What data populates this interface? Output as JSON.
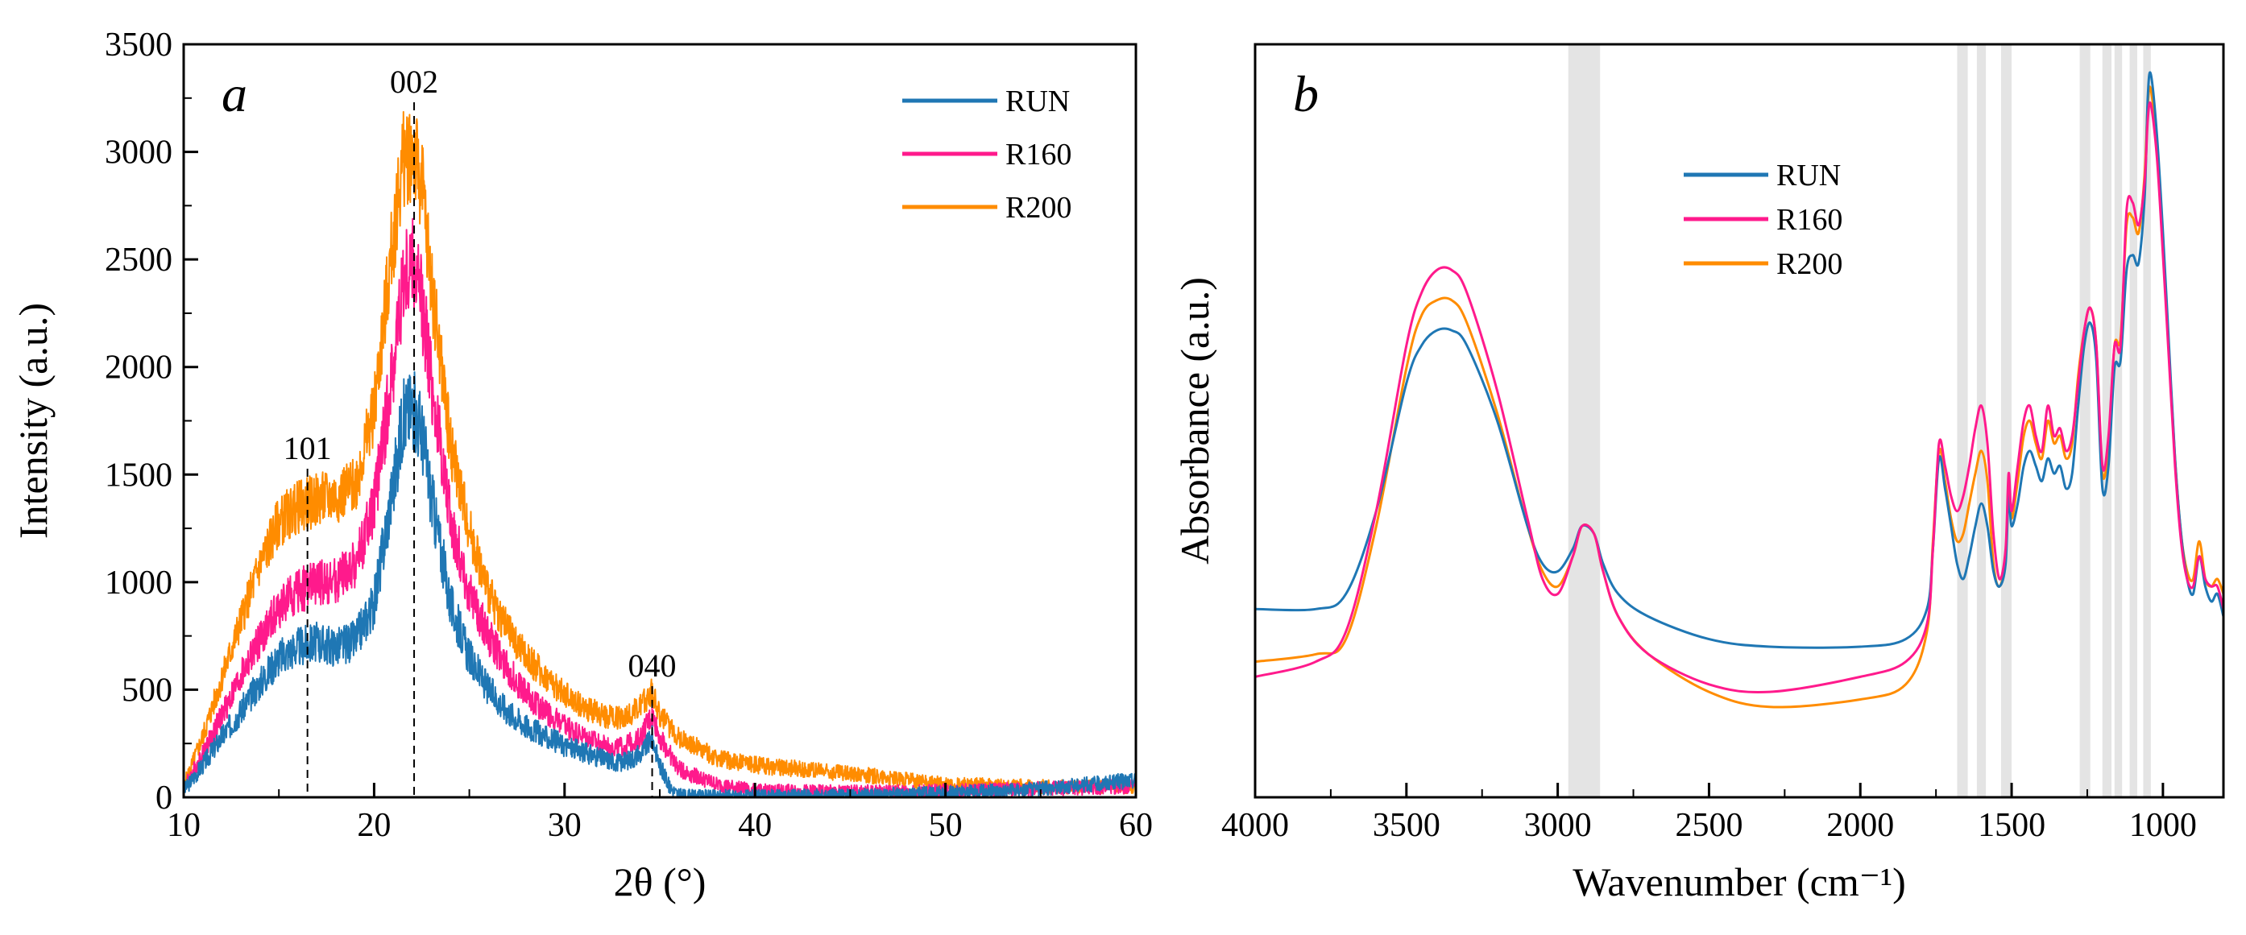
{
  "chart_data": [
    {
      "type": "line",
      "panel_label": "a",
      "xlabel": "2θ (°)",
      "ylabel": "Intensity (a.u.)",
      "xlim": [
        10,
        60
      ],
      "ylim": [
        0,
        3500
      ],
      "x_ticks": [
        "10",
        "20",
        "30",
        "40",
        "50",
        "60"
      ],
      "y_ticks": [
        "0",
        "500",
        "1000",
        "1500",
        "2000",
        "2500",
        "3000",
        "3500"
      ],
      "legend_position": "top-right",
      "series": [
        {
          "name": "RUN",
          "color": "#1f77b4",
          "x": [
            10,
            11,
            12,
            13,
            14,
            15,
            16,
            17,
            18,
            19,
            20,
            21,
            21.5,
            22,
            22.5,
            23,
            24,
            25,
            26,
            27,
            28,
            29,
            30,
            31,
            32,
            33,
            34,
            34.6,
            35,
            35.5,
            36,
            37,
            38,
            40,
            45,
            50,
            55,
            60
          ],
          "y": [
            30,
            150,
            280,
            400,
            530,
            650,
            700,
            720,
            700,
            730,
            900,
            1450,
            1750,
            1820,
            1700,
            1400,
            900,
            650,
            500,
            400,
            330,
            280,
            240,
            210,
            180,
            160,
            200,
            280,
            150,
            50,
            10,
            5,
            5,
            5,
            10,
            20,
            40,
            80
          ]
        },
        {
          "name": "R160",
          "color": "#ff1a8c",
          "x": [
            10,
            11,
            12,
            13,
            14,
            15,
            16,
            17,
            18,
            19,
            20,
            21,
            21.5,
            22,
            22.5,
            23,
            24,
            25,
            26,
            27,
            28,
            29,
            30,
            31,
            32,
            33,
            34,
            34.6,
            35,
            36,
            38,
            40,
            45,
            50,
            55,
            60
          ],
          "y": [
            40,
            200,
            380,
            560,
            730,
            880,
            960,
            1000,
            1000,
            1080,
            1350,
            2000,
            2400,
            2480,
            2300,
            1950,
            1300,
            950,
            750,
            600,
            480,
            400,
            330,
            280,
            240,
            230,
            280,
            380,
            280,
            130,
            60,
            30,
            25,
            30,
            40,
            50
          ]
        },
        {
          "name": "R200",
          "color": "#ff8c00",
          "x": [
            10,
            11,
            12,
            13,
            14,
            15,
            16,
            17,
            18,
            19,
            20,
            21,
            21.5,
            22,
            22.5,
            23,
            24,
            25,
            26,
            27,
            28,
            29,
            30,
            31,
            32,
            33,
            34,
            34.6,
            35,
            36,
            38,
            40,
            45,
            50,
            55,
            60
          ],
          "y": [
            50,
            280,
            550,
            820,
            1080,
            1280,
            1350,
            1380,
            1400,
            1450,
            1800,
            2600,
            2950,
            3020,
            2850,
            2400,
            1650,
            1250,
            950,
            780,
            650,
            560,
            480,
            420,
            380,
            370,
            420,
            500,
            380,
            280,
            180,
            150,
            110,
            60,
            50,
            50
          ]
        }
      ],
      "annotations": [
        {
          "label": "101",
          "x": 16.5
        },
        {
          "label": "002",
          "x": 22.1
        },
        {
          "label": "040",
          "x": 34.6
        }
      ]
    },
    {
      "type": "line",
      "panel_label": "b",
      "xlabel": "Wavenumber (cm⁻¹)",
      "ylabel": "Absorbance (a.u.)",
      "xlim": [
        4000,
        800
      ],
      "ylim": [
        0,
        1
      ],
      "x_ticks": [
        "4000",
        "3500",
        "3000",
        "2500",
        "2000",
        "1500",
        "1000"
      ],
      "legend_position": "upper-center",
      "shaded_bands": [
        [
          2965,
          2860
        ],
        [
          1680,
          1645
        ],
        [
          1615,
          1585
        ],
        [
          1535,
          1500
        ],
        [
          1275,
          1240
        ],
        [
          1200,
          1170
        ],
        [
          1160,
          1135
        ],
        [
          1110,
          1085
        ],
        [
          1065,
          1040
        ]
      ],
      "series": [
        {
          "name": "RUN",
          "color": "#1f77b4",
          "x": [
            4000,
            3800,
            3700,
            3600,
            3500,
            3450,
            3400,
            3350,
            3300,
            3200,
            3100,
            3050,
            3000,
            2950,
            2920,
            2880,
            2850,
            2800,
            2700,
            2500,
            2300,
            2000,
            1850,
            1780,
            1760,
            1740,
            1720,
            1700,
            1680,
            1660,
            1640,
            1620,
            1600,
            1580,
            1560,
            1540,
            1520,
            1510,
            1500,
            1480,
            1460,
            1440,
            1420,
            1400,
            1380,
            1360,
            1340,
            1320,
            1300,
            1280,
            1260,
            1240,
            1220,
            1200,
            1180,
            1160,
            1140,
            1120,
            1100,
            1080,
            1060,
            1050,
            1040,
            1020,
            1000,
            980,
            960,
            940,
            920,
            900,
            880,
            860,
            840,
            820,
            800
          ],
          "y": [
            0.25,
            0.25,
            0.27,
            0.38,
            0.55,
            0.6,
            0.62,
            0.62,
            0.6,
            0.5,
            0.36,
            0.31,
            0.3,
            0.33,
            0.36,
            0.35,
            0.31,
            0.27,
            0.24,
            0.21,
            0.2,
            0.2,
            0.21,
            0.25,
            0.33,
            0.45,
            0.41,
            0.36,
            0.31,
            0.29,
            0.32,
            0.36,
            0.39,
            0.36,
            0.3,
            0.28,
            0.31,
            0.4,
            0.36,
            0.39,
            0.44,
            0.46,
            0.44,
            0.42,
            0.45,
            0.43,
            0.44,
            0.41,
            0.43,
            0.52,
            0.6,
            0.63,
            0.58,
            0.41,
            0.44,
            0.57,
            0.58,
            0.7,
            0.72,
            0.71,
            0.8,
            0.93,
            0.96,
            0.88,
            0.75,
            0.6,
            0.45,
            0.35,
            0.29,
            0.27,
            0.32,
            0.28,
            0.26,
            0.27,
            0.24
          ]
        },
        {
          "name": "R160",
          "color": "#ff1a8c",
          "x": [
            4000,
            3800,
            3700,
            3600,
            3500,
            3450,
            3400,
            3350,
            3300,
            3200,
            3100,
            3050,
            3000,
            2950,
            2920,
            2880,
            2850,
            2800,
            2700,
            2500,
            2300,
            2000,
            1850,
            1780,
            1760,
            1740,
            1720,
            1700,
            1680,
            1660,
            1640,
            1620,
            1600,
            1580,
            1560,
            1540,
            1520,
            1510,
            1500,
            1480,
            1460,
            1440,
            1420,
            1400,
            1380,
            1360,
            1340,
            1320,
            1300,
            1280,
            1260,
            1240,
            1220,
            1200,
            1180,
            1160,
            1140,
            1120,
            1100,
            1080,
            1060,
            1050,
            1040,
            1020,
            1000,
            980,
            960,
            940,
            920,
            900,
            880,
            860,
            840,
            820,
            800
          ],
          "y": [
            0.16,
            0.18,
            0.22,
            0.38,
            0.6,
            0.67,
            0.7,
            0.7,
            0.67,
            0.54,
            0.37,
            0.29,
            0.27,
            0.32,
            0.36,
            0.35,
            0.3,
            0.24,
            0.19,
            0.15,
            0.14,
            0.16,
            0.18,
            0.23,
            0.33,
            0.47,
            0.44,
            0.4,
            0.38,
            0.4,
            0.44,
            0.49,
            0.52,
            0.47,
            0.35,
            0.29,
            0.33,
            0.43,
            0.38,
            0.44,
            0.5,
            0.52,
            0.48,
            0.46,
            0.52,
            0.48,
            0.49,
            0.46,
            0.48,
            0.55,
            0.62,
            0.65,
            0.6,
            0.44,
            0.48,
            0.6,
            0.6,
            0.78,
            0.79,
            0.76,
            0.82,
            0.9,
            0.92,
            0.85,
            0.72,
            0.58,
            0.44,
            0.34,
            0.29,
            0.28,
            0.32,
            0.29,
            0.28,
            0.28,
            0.25
          ]
        },
        {
          "name": "R200",
          "color": "#ff8c00",
          "x": [
            4000,
            3800,
            3700,
            3600,
            3500,
            3450,
            3400,
            3350,
            3300,
            3200,
            3100,
            3050,
            3000,
            2950,
            2920,
            2880,
            2850,
            2800,
            2700,
            2500,
            2300,
            2000,
            1850,
            1780,
            1760,
            1740,
            1720,
            1700,
            1680,
            1660,
            1640,
            1620,
            1600,
            1580,
            1560,
            1540,
            1520,
            1510,
            1500,
            1480,
            1460,
            1440,
            1420,
            1400,
            1380,
            1360,
            1340,
            1320,
            1300,
            1280,
            1260,
            1240,
            1220,
            1200,
            1180,
            1160,
            1140,
            1120,
            1100,
            1080,
            1060,
            1050,
            1040,
            1020,
            1000,
            980,
            960,
            940,
            920,
            900,
            880,
            860,
            840,
            820,
            800
          ],
          "y": [
            0.18,
            0.19,
            0.21,
            0.36,
            0.57,
            0.64,
            0.66,
            0.66,
            0.63,
            0.51,
            0.36,
            0.3,
            0.28,
            0.32,
            0.36,
            0.35,
            0.3,
            0.24,
            0.19,
            0.14,
            0.12,
            0.13,
            0.15,
            0.22,
            0.34,
            0.46,
            0.42,
            0.37,
            0.34,
            0.35,
            0.39,
            0.43,
            0.46,
            0.42,
            0.31,
            0.28,
            0.32,
            0.42,
            0.37,
            0.42,
            0.48,
            0.5,
            0.47,
            0.45,
            0.5,
            0.47,
            0.48,
            0.45,
            0.47,
            0.56,
            0.62,
            0.65,
            0.6,
            0.43,
            0.47,
            0.6,
            0.61,
            0.76,
            0.77,
            0.75,
            0.83,
            0.92,
            0.94,
            0.86,
            0.73,
            0.59,
            0.45,
            0.35,
            0.3,
            0.29,
            0.34,
            0.29,
            0.28,
            0.29,
            0.27
          ]
        }
      ]
    }
  ]
}
